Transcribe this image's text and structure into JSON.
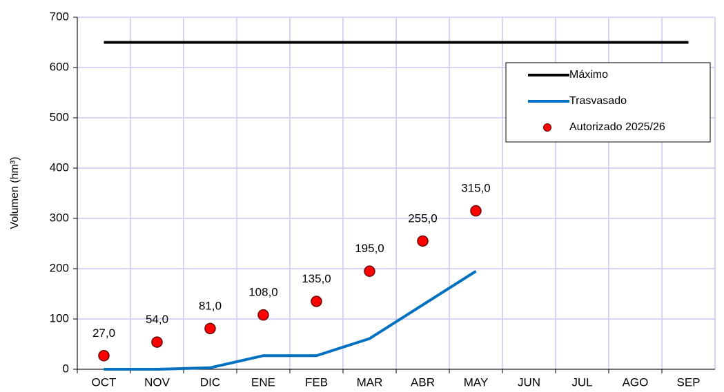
{
  "chart_data": {
    "type": "line",
    "y_label": "Volumen (hm³)",
    "categories": [
      "OCT",
      "NOV",
      "DIC",
      "ENE",
      "FEB",
      "MAR",
      "ABR",
      "MAY",
      "JUN",
      "JUL",
      "AGO",
      "SEP"
    ],
    "series": [
      {
        "name": "Máximo",
        "color": "#000000",
        "style": "line",
        "values": [
          650,
          650,
          650,
          650,
          650,
          650,
          650,
          650,
          650,
          650,
          650,
          650
        ]
      },
      {
        "name": "Trasvasado",
        "color": "#0070c0",
        "style": "line",
        "values": [
          0,
          0,
          3,
          27,
          27,
          61,
          128,
          195,
          null,
          null,
          null,
          null
        ]
      },
      {
        "name": "Autorizado 2025/26",
        "color": "#ff0000",
        "style": "scatter",
        "values": [
          27,
          54,
          81,
          108,
          135,
          195,
          255,
          315,
          null,
          null,
          null,
          null
        ],
        "value_labels": [
          "27,0",
          "54,0",
          "81,0",
          "108,0",
          "135,0",
          "195,0",
          "255,0",
          "315,0",
          null,
          null,
          null,
          null
        ]
      }
    ],
    "ylim": [
      0,
      700
    ],
    "yticks": [
      0,
      100,
      200,
      300,
      400,
      500,
      600,
      700
    ],
    "grid": true,
    "legend": "upper right"
  }
}
